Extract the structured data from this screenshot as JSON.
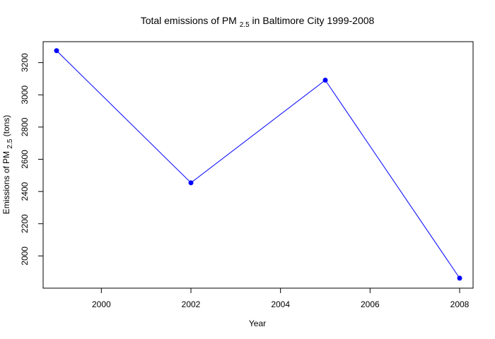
{
  "chart_data": {
    "type": "line",
    "title": {
      "prefix": "Total emissions of PM",
      "subscript": "2.5",
      "suffix": " in Baltimore City 1999-2008"
    },
    "xlabel": "Year",
    "ylabel": {
      "prefix": "Emissions of PM",
      "subscript": "2.5",
      "suffix": "  (tons)"
    },
    "x": [
      1999,
      2002,
      2005,
      2008
    ],
    "series": [
      {
        "values": [
          3274,
          2454,
          3091,
          1862
        ]
      }
    ],
    "xlim": [
      1998.7,
      2008.3
    ],
    "ylim": [
      1800,
      3330
    ],
    "xticks": [
      2000,
      2002,
      2004,
      2006,
      2008
    ],
    "yticks": [
      2000,
      2200,
      2400,
      2600,
      2800,
      3000,
      3200
    ],
    "x_tick_labels": [
      "2000",
      "2002",
      "2004",
      "2006",
      "2008"
    ],
    "y_tick_labels": [
      "2000",
      "2200",
      "2400",
      "2600",
      "2800",
      "3000",
      "3200"
    ],
    "grid": false,
    "colors": {
      "line": "#0000ff",
      "points": "#0000ff",
      "axes": "#000000"
    }
  }
}
